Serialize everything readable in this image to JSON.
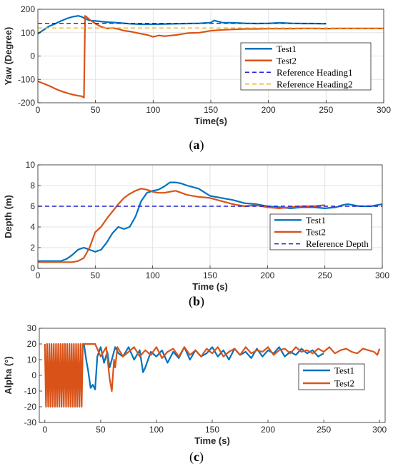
{
  "chart_data": [
    {
      "type": "line",
      "panel": "a",
      "xlabel": "Time(s)",
      "ylabel": "Yaw (Degree)",
      "xlim": [
        0,
        300
      ],
      "ylim": [
        -200,
        200
      ],
      "xticks": [
        "0",
        "50",
        "100",
        "150",
        "200",
        "250",
        "300"
      ],
      "yticks": [
        "-200",
        "-100",
        "0",
        "100",
        "200"
      ],
      "xtick_values": [
        0,
        50,
        100,
        150,
        200,
        250,
        300
      ],
      "ytick_values": [
        -200,
        -100,
        0,
        100,
        200
      ],
      "grid": true,
      "legend_position": "center-right",
      "series": [
        {
          "name": "Test1",
          "color": "#0072BD",
          "style": "solid",
          "x": [
            0,
            5,
            10,
            15,
            20,
            25,
            30,
            35,
            38,
            41,
            45,
            50,
            60,
            70,
            80,
            90,
            100,
            110,
            120,
            130,
            140,
            150,
            153,
            160,
            170,
            180,
            190,
            200,
            210,
            220,
            230,
            240,
            250
          ],
          "y": [
            95,
            112,
            128,
            138,
            150,
            160,
            168,
            172,
            168,
            160,
            152,
            150,
            145,
            142,
            138,
            136,
            136,
            137,
            138,
            139,
            140,
            143,
            152,
            143,
            142,
            140,
            139,
            140,
            142,
            140,
            139,
            139,
            138
          ]
        },
        {
          "name": "Test2",
          "color": "#D95319",
          "style": "solid",
          "x": [
            0,
            5,
            10,
            15,
            20,
            25,
            30,
            35,
            38,
            40,
            41,
            42,
            45,
            50,
            55,
            60,
            65,
            70,
            75,
            80,
            85,
            90,
            95,
            100,
            105,
            110,
            120,
            130,
            140,
            150,
            160,
            170,
            180,
            190,
            200,
            210,
            220,
            230,
            240,
            250,
            260,
            270,
            280,
            290,
            300
          ],
          "y": [
            -108,
            -118,
            -128,
            -140,
            -150,
            -158,
            -165,
            -170,
            -172,
            -178,
            172,
            168,
            155,
            138,
            125,
            118,
            120,
            115,
            108,
            105,
            100,
            95,
            90,
            82,
            88,
            85,
            90,
            98,
            100,
            108,
            112,
            114,
            116,
            116,
            117,
            117,
            117,
            118,
            118,
            117,
            118,
            118,
            118,
            118,
            118
          ]
        },
        {
          "name": "Reference Heading1",
          "color": "#2020D0",
          "style": "dashed",
          "x": [
            0,
            250
          ],
          "y": [
            140,
            140
          ]
        },
        {
          "name": "Reference Heading2",
          "color": "#EDB120",
          "style": "dashed",
          "x": [
            0,
            300
          ],
          "y": [
            120,
            120
          ]
        }
      ]
    },
    {
      "type": "line",
      "panel": "b",
      "xlabel": "Time (s)",
      "ylabel": "Depth (m)",
      "xlim": [
        0,
        300
      ],
      "ylim": [
        0,
        10
      ],
      "xticks": [
        "0",
        "50",
        "100",
        "150",
        "200",
        "250",
        "300"
      ],
      "yticks": [
        "0",
        "2",
        "4",
        "6",
        "8",
        "10"
      ],
      "xtick_values": [
        0,
        50,
        100,
        150,
        200,
        250,
        300
      ],
      "ytick_values": [
        0,
        2,
        4,
        6,
        8,
        10
      ],
      "grid": true,
      "legend_position": "bottom-right",
      "series": [
        {
          "name": "Test1",
          "color": "#0072BD",
          "style": "solid",
          "x": [
            0,
            10,
            20,
            25,
            30,
            35,
            40,
            45,
            50,
            55,
            60,
            65,
            70,
            75,
            80,
            85,
            90,
            95,
            100,
            105,
            110,
            115,
            120,
            125,
            130,
            140,
            150,
            160,
            170,
            180,
            190,
            200,
            210,
            220,
            230,
            240,
            250,
            260,
            265,
            270,
            280,
            290,
            300
          ],
          "y": [
            0.7,
            0.7,
            0.7,
            0.9,
            1.3,
            1.8,
            2.0,
            1.8,
            1.6,
            1.8,
            2.5,
            3.4,
            4.0,
            3.8,
            4.0,
            5.0,
            6.5,
            7.3,
            7.5,
            7.6,
            7.9,
            8.3,
            8.3,
            8.2,
            8.0,
            7.7,
            7.0,
            6.8,
            6.6,
            6.3,
            6.2,
            6.0,
            5.9,
            5.8,
            5.9,
            5.9,
            5.8,
            5.9,
            6.1,
            6.2,
            6.0,
            6.0,
            6.2
          ]
        },
        {
          "name": "Test2",
          "color": "#D95319",
          "style": "solid",
          "x": [
            0,
            10,
            20,
            30,
            35,
            40,
            45,
            50,
            55,
            60,
            65,
            70,
            75,
            80,
            85,
            90,
            95,
            100,
            105,
            110,
            115,
            120,
            125,
            130,
            140,
            150,
            160,
            170,
            180,
            190,
            200,
            210,
            220,
            230,
            240,
            250
          ],
          "y": [
            0.6,
            0.6,
            0.6,
            0.6,
            0.7,
            1.0,
            2.0,
            3.5,
            4.0,
            4.8,
            5.5,
            6.2,
            6.8,
            7.2,
            7.5,
            7.7,
            7.6,
            7.4,
            7.3,
            7.3,
            7.4,
            7.5,
            7.3,
            7.1,
            6.9,
            6.8,
            6.5,
            6.2,
            6.0,
            6.1,
            5.9,
            5.8,
            5.9,
            6.0,
            6.0,
            6.1
          ]
        },
        {
          "name": "Reference Depth",
          "color": "#2020D0",
          "style": "dashed",
          "x": [
            0,
            300
          ],
          "y": [
            6,
            6
          ]
        }
      ]
    },
    {
      "type": "line",
      "panel": "c",
      "xlabel": "Time (s)",
      "ylabel": "Alpha (°)",
      "xlim": [
        -5,
        305
      ],
      "ylim": [
        -30,
        30
      ],
      "xticks": [
        "0",
        "50",
        "100",
        "150",
        "200",
        "250",
        "300"
      ],
      "yticks": [
        "-30",
        "-20",
        "-10",
        "0",
        "10",
        "20",
        "30"
      ],
      "xtick_values": [
        0,
        50,
        100,
        150,
        200,
        250,
        300
      ],
      "ytick_values": [
        -30,
        -20,
        -10,
        0,
        10,
        20,
        30
      ],
      "grid": false,
      "legend_position": "center-right",
      "series": [
        {
          "name": "Test1",
          "color": "#0072BD",
          "style": "solid",
          "x": [
            35,
            37,
            39,
            41,
            43,
            45,
            47,
            50,
            53,
            56,
            58,
            60,
            63,
            66,
            70,
            75,
            80,
            85,
            88,
            90,
            95,
            100,
            105,
            110,
            115,
            120,
            125,
            130,
            135,
            140,
            145,
            150,
            155,
            160,
            165,
            170,
            175,
            180,
            185,
            190,
            195,
            200,
            205,
            210,
            215,
            220,
            225,
            230,
            235,
            240,
            245,
            250
          ],
          "y": [
            20,
            10,
            2,
            -8,
            -6,
            -9,
            12,
            18,
            8,
            15,
            5,
            10,
            18,
            14,
            12,
            18,
            10,
            16,
            2,
            5,
            15,
            12,
            16,
            8,
            15,
            11,
            18,
            10,
            16,
            12,
            14,
            18,
            12,
            16,
            10,
            17,
            13,
            15,
            11,
            17,
            12,
            16,
            14,
            18,
            12,
            15,
            13,
            17,
            14,
            16,
            12,
            14
          ]
        },
        {
          "name": "Test2",
          "color": "#D95319",
          "style": "solid",
          "x": [
            0,
            1,
            2,
            3,
            4,
            5,
            6,
            7,
            8,
            9,
            10,
            11,
            12,
            13,
            14,
            15,
            16,
            17,
            18,
            19,
            20,
            21,
            22,
            23,
            24,
            25,
            26,
            27,
            28,
            29,
            30,
            31,
            32,
            33,
            34,
            35,
            40,
            45,
            50,
            55,
            58,
            60,
            62,
            63,
            65,
            70,
            75,
            80,
            85,
            90,
            95,
            100,
            105,
            110,
            115,
            120,
            125,
            130,
            135,
            140,
            145,
            150,
            155,
            160,
            165,
            170,
            175,
            180,
            185,
            190,
            195,
            200,
            205,
            210,
            215,
            220,
            225,
            230,
            235,
            240,
            245,
            250,
            255,
            260,
            265,
            270,
            275,
            280,
            285,
            290,
            295,
            298,
            300
          ],
          "y": [
            20,
            -20,
            20,
            -20,
            20,
            -20,
            20,
            -20,
            20,
            -20,
            20,
            -20,
            20,
            -20,
            20,
            -20,
            20,
            -20,
            20,
            -20,
            20,
            -20,
            20,
            -20,
            20,
            -20,
            20,
            -20,
            20,
            -20,
            20,
            -20,
            20,
            -20,
            20,
            20,
            20,
            20,
            12,
            18,
            -2,
            -10,
            10,
            5,
            18,
            12,
            15,
            18,
            12,
            16,
            13,
            18,
            11,
            15,
            17,
            12,
            18,
            13,
            16,
            12,
            17,
            14,
            18,
            12,
            15,
            17,
            13,
            18,
            14,
            16,
            15,
            18,
            13,
            16,
            17,
            14,
            18,
            15,
            16,
            14,
            17,
            15,
            18,
            14,
            16,
            17,
            15,
            14,
            17,
            16,
            15,
            13,
            17
          ]
        }
      ]
    }
  ],
  "captions": [
    "(a)",
    "(b)",
    "(c)"
  ]
}
